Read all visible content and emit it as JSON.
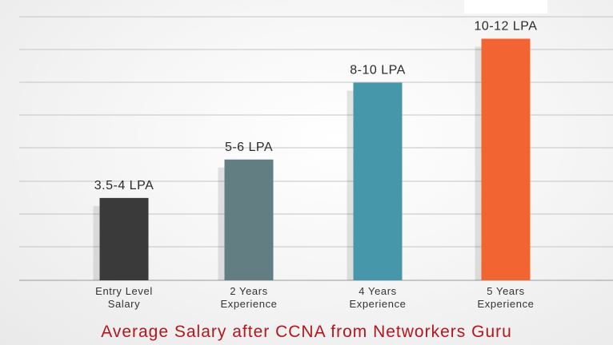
{
  "chart_data": {
    "type": "bar",
    "title": "Average Salary after CCNA from Networkers Guru",
    "categories": [
      [
        "Entry Level",
        "Salary"
      ],
      [
        "2 Years",
        "Experience"
      ],
      [
        "4 Years",
        "Experience"
      ],
      [
        "5 Years",
        "Experience"
      ]
    ],
    "data_labels": [
      "3.5-4 LPA",
      "5-6 LPA",
      "8-10 LPA",
      "10-12 LPA"
    ],
    "values": [
      3.75,
      5.5,
      9,
      11
    ],
    "ylim": [
      0,
      12
    ],
    "grid": true,
    "colors": [
      "#3a3a3a",
      "#627e83",
      "#4697a9",
      "#f26533"
    ]
  }
}
